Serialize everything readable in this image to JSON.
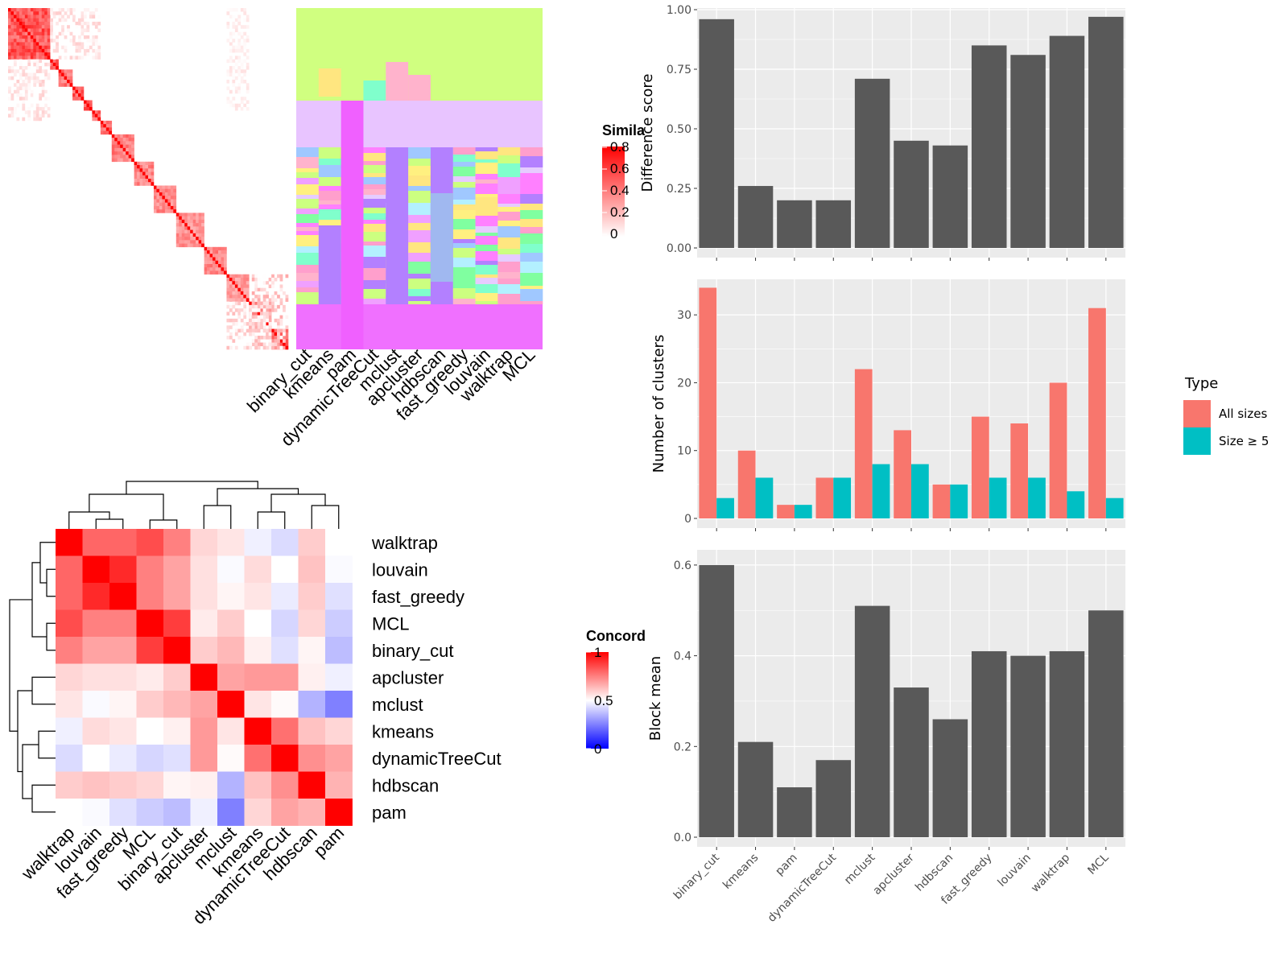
{
  "methods_order": [
    "binary_cut",
    "kmeans",
    "pam",
    "dynamicTreeCut",
    "mclust",
    "apcluster",
    "hdbscan",
    "fast_greedy",
    "louvain",
    "walktrap",
    "MCL"
  ],
  "colors": {
    "panel_bg": "#ebebeb",
    "grid": "#ffffff",
    "bar": "#595959",
    "all_sizes": "#f8766d",
    "size_ge5": "#00bfc4",
    "heat_high": "#ff0000",
    "heat_low": "#ffffff",
    "conc_low": "#0000ff",
    "conc_mid": "#ffffff",
    "conc_high": "#ff0000"
  },
  "similarity_heatmap": {
    "legend_title": "Simila",
    "legend_ticks": [
      "0.8",
      "0.6",
      "0.4",
      "0.2",
      "0"
    ],
    "column_labels": [
      "binary_cut",
      "kmeans",
      "pam",
      "dynamicTreeCut",
      "mclust",
      "apcluster",
      "hdbscan",
      "fast_greedy",
      "louvain",
      "walktrap",
      "MCL"
    ]
  },
  "concordance_heatmap": {
    "legend_title": "Concord",
    "legend_ticks": [
      "1",
      "0.5",
      "0"
    ],
    "order": [
      "walktrap",
      "louvain",
      "fast_greedy",
      "MCL",
      "binary_cut",
      "apcluster",
      "mclust",
      "kmeans",
      "dynamicTreeCut",
      "hdbscan",
      "pam"
    ],
    "matrix": [
      [
        1.0,
        0.8,
        0.8,
        0.85,
        0.75,
        0.58,
        0.55,
        0.47,
        0.43,
        0.6,
        0.5
      ],
      [
        0.8,
        1.0,
        0.92,
        0.75,
        0.68,
        0.56,
        0.49,
        0.57,
        0.5,
        0.62,
        0.49
      ],
      [
        0.8,
        0.92,
        1.0,
        0.75,
        0.68,
        0.56,
        0.52,
        0.55,
        0.46,
        0.6,
        0.44
      ],
      [
        0.85,
        0.75,
        0.75,
        1.0,
        0.88,
        0.54,
        0.6,
        0.5,
        0.42,
        0.58,
        0.4
      ],
      [
        0.75,
        0.68,
        0.68,
        0.88,
        1.0,
        0.6,
        0.64,
        0.53,
        0.44,
        0.52,
        0.37
      ],
      [
        0.58,
        0.56,
        0.56,
        0.54,
        0.6,
        1.0,
        0.68,
        0.7,
        0.7,
        0.53,
        0.47
      ],
      [
        0.55,
        0.49,
        0.52,
        0.6,
        0.64,
        0.68,
        1.0,
        0.55,
        0.51,
        0.35,
        0.25
      ],
      [
        0.47,
        0.57,
        0.55,
        0.5,
        0.53,
        0.7,
        0.55,
        1.0,
        0.78,
        0.62,
        0.58
      ],
      [
        0.43,
        0.5,
        0.46,
        0.42,
        0.44,
        0.7,
        0.51,
        0.78,
        1.0,
        0.72,
        0.68
      ],
      [
        0.6,
        0.62,
        0.6,
        0.58,
        0.52,
        0.53,
        0.35,
        0.62,
        0.72,
        1.0,
        0.65
      ],
      [
        0.5,
        0.49,
        0.44,
        0.4,
        0.37,
        0.47,
        0.25,
        0.58,
        0.68,
        0.65,
        1.0
      ]
    ]
  },
  "chart_data": [
    {
      "type": "bar",
      "categories": [
        "binary_cut",
        "kmeans",
        "pam",
        "dynamicTreeCut",
        "mclust",
        "apcluster",
        "hdbscan",
        "fast_greedy",
        "louvain",
        "walktrap",
        "MCL"
      ],
      "values": [
        0.96,
        0.26,
        0.2,
        0.2,
        0.71,
        0.45,
        0.43,
        0.85,
        0.81,
        0.89,
        0.97
      ],
      "ylabel": "Difference score",
      "ylim": [
        0,
        1.0
      ],
      "yticks": [
        "0.00",
        "0.25",
        "0.50",
        "0.75",
        "1.00"
      ]
    },
    {
      "type": "bar",
      "categories": [
        "binary_cut",
        "kmeans",
        "pam",
        "dynamicTreeCut",
        "mclust",
        "apcluster",
        "hdbscan",
        "fast_greedy",
        "louvain",
        "walktrap",
        "MCL"
      ],
      "series": [
        {
          "name": "All sizes",
          "values": [
            34,
            10,
            2,
            6,
            22,
            13,
            5,
            15,
            14,
            20,
            31
          ]
        },
        {
          "name": "Size ≥ 5",
          "values": [
            3,
            6,
            2,
            6,
            8,
            8,
            5,
            6,
            6,
            4,
            3
          ]
        }
      ],
      "ylabel": "Number of clusters",
      "ylim": [
        0,
        35
      ],
      "yticks": [
        "0",
        "10",
        "20",
        "30"
      ],
      "legend_title": "Type",
      "legend_position": "right"
    },
    {
      "type": "bar",
      "categories": [
        "binary_cut",
        "kmeans",
        "pam",
        "dynamicTreeCut",
        "mclust",
        "apcluster",
        "hdbscan",
        "fast_greedy",
        "louvain",
        "walktrap",
        "MCL"
      ],
      "values": [
        0.6,
        0.21,
        0.11,
        0.17,
        0.51,
        0.33,
        0.26,
        0.41,
        0.4,
        0.41,
        0.5
      ],
      "ylabel": "Block mean",
      "ylim": [
        0,
        0.63
      ],
      "yticks": [
        "0.0",
        "0.2",
        "0.4",
        "0.6"
      ]
    }
  ]
}
